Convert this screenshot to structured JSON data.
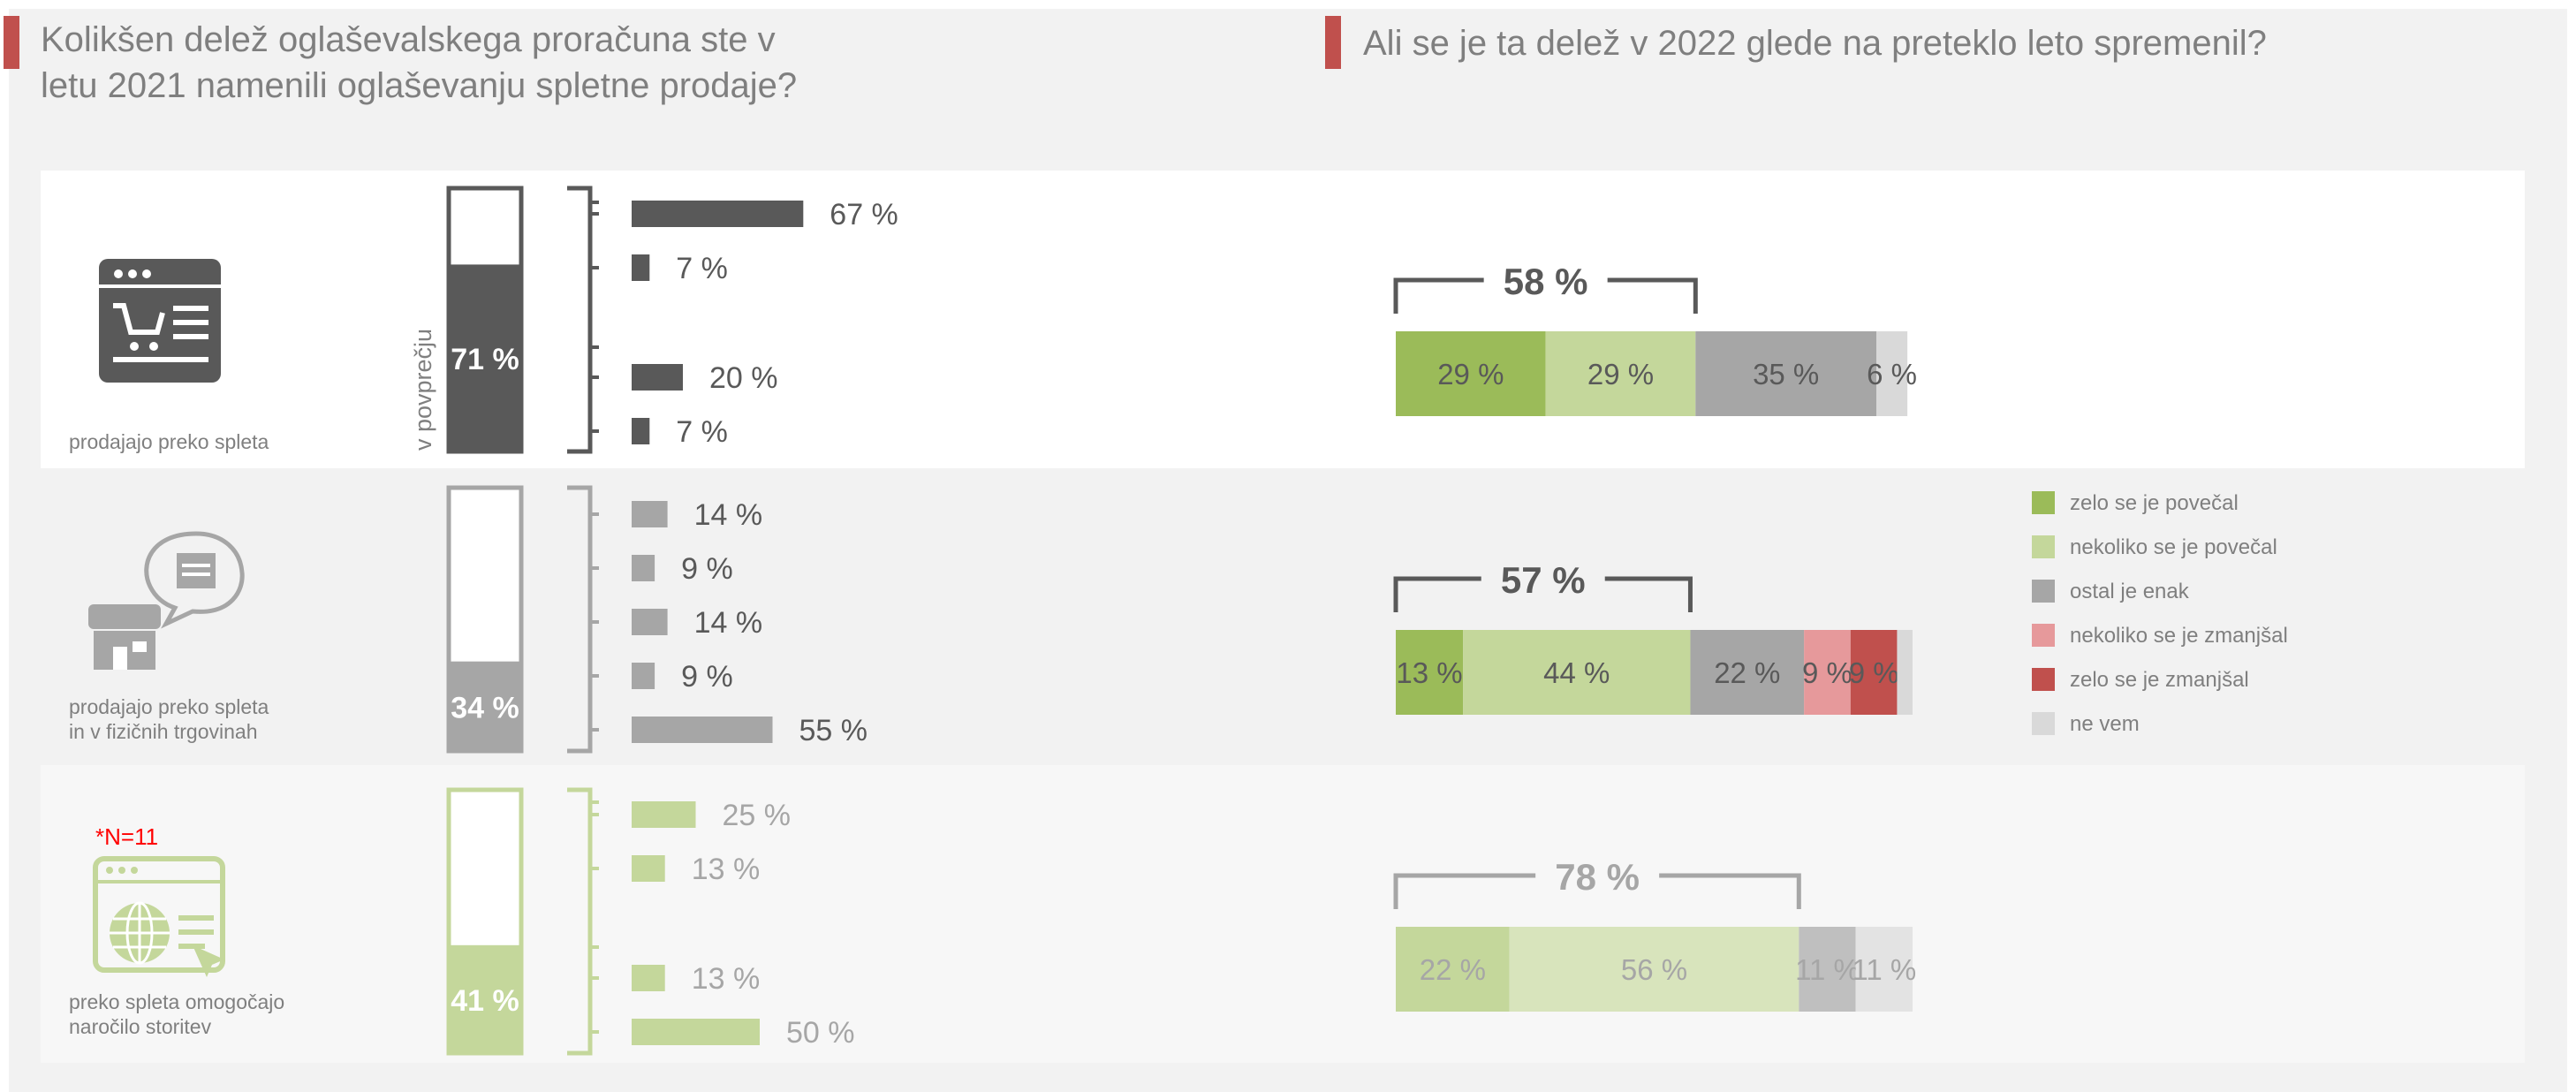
{
  "titles": {
    "left": [
      "Kolikšen delež oglaševalskega proračuna ste v",
      "letu 2021 namenili oglaševanju spletne prodaje?"
    ],
    "right": "Ali se je ta delež v 2022 glede na preteklo leto spremenil?"
  },
  "axis_note": "v povprečju",
  "note_n": "*N=11",
  "colors": {
    "accent_red": "#c0504d",
    "dark_gray": "#595959",
    "mid_gray": "#a6a6a6",
    "light_green": "#c4d79b",
    "pale_gray_bg": "#f2f2f2",
    "legend": [
      "#9bbb59",
      "#c4d79b",
      "#a6a6a6",
      "#e6999b",
      "#c0504d",
      "#d9d9d9"
    ]
  },
  "chart_data": [
    {
      "type": "bar",
      "title": "Kolikšen delež oglaševalskega proračuna ste v letu 2021 namenili oglaševanju spletne prodaje?",
      "groups": [
        {
          "label": [
            "prodajajo preko spleta"
          ],
          "icon": "online-shop-icon",
          "average": 71,
          "average_label": "71 %",
          "values": [
            67,
            7,
            20,
            7
          ],
          "value_labels": [
            "67 %",
            "7 %",
            "20 %",
            "7 %"
          ]
        },
        {
          "label": [
            "prodajajo preko spleta",
            "in v fizičnih trgovinah"
          ],
          "icon": "physical-store-icon",
          "average": 34,
          "average_label": "34 %",
          "values": [
            14,
            9,
            14,
            9,
            55
          ],
          "value_labels": [
            "14 %",
            "9 %",
            "14 %",
            "9 %",
            "55 %"
          ]
        },
        {
          "label": [
            "preko spleta omogočajo",
            "naročilo storitev"
          ],
          "icon": "web-services-icon",
          "average": 41,
          "average_label": "41 %",
          "values": [
            25,
            13,
            13,
            50
          ],
          "value_labels": [
            "25 %",
            "13 %",
            "13 %",
            "50 %"
          ]
        }
      ]
    },
    {
      "type": "bar",
      "stacked": true,
      "orientation": "horizontal",
      "title": "Ali se je ta delež v 2022 glede na preteklo leto spremenil?",
      "legend": [
        "zelo se je povečal",
        "nekoliko se je povečal",
        "ostal je enak",
        "nekoliko se je zmanjšal",
        "zelo se je zmanjšal",
        "ne vem"
      ],
      "rows": [
        {
          "values": [
            29,
            29,
            35,
            0,
            0,
            6
          ],
          "labels": [
            "29 %",
            "29 %",
            "35 %",
            "",
            "",
            "6 %"
          ],
          "increase_total": "58 %"
        },
        {
          "values": [
            13,
            44,
            22,
            9,
            9,
            3
          ],
          "labels": [
            "13 %",
            "44 %",
            "22 %",
            "9 %",
            "9 %",
            ""
          ],
          "increase_total": "57 %"
        },
        {
          "values": [
            22,
            56,
            11,
            0,
            0,
            11
          ],
          "labels": [
            "22 %",
            "56 %",
            "11 %",
            "",
            "",
            "11 %"
          ],
          "increase_total": "78 %"
        }
      ]
    }
  ]
}
